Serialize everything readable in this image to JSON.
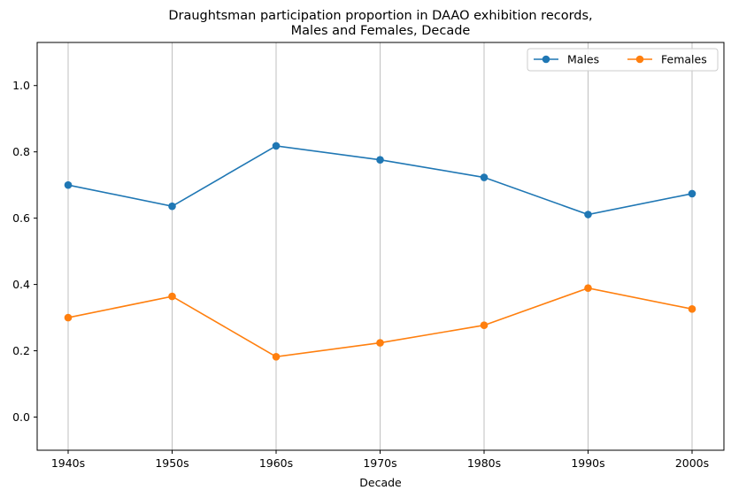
{
  "chart_data": {
    "type": "line",
    "title": "Draughtsman participation proportion in DAAO exhibition records,\nMales and Females, Decade",
    "title_lines": [
      "Draughtsman participation proportion in DAAO exhibition records,",
      "Males and Females, Decade"
    ],
    "xlabel": "Decade",
    "ylabel": "",
    "categories": [
      "1940s",
      "1950s",
      "1960s",
      "1970s",
      "1980s",
      "1990s",
      "2000s"
    ],
    "ylim": [
      -0.1,
      1.13
    ],
    "yticks": [
      0.0,
      0.2,
      0.4,
      0.6,
      0.8,
      1.0
    ],
    "ytick_labels": [
      "0.0",
      "0.2",
      "0.4",
      "0.6",
      "0.8",
      "1.0"
    ],
    "grid": "vertical",
    "legend_position": "top-right",
    "series": [
      {
        "name": "Males",
        "color": "#1f77b4",
        "values": [
          0.7,
          0.636,
          0.818,
          0.776,
          0.723,
          0.611,
          0.674
        ]
      },
      {
        "name": "Females",
        "color": "#ff7f0e",
        "values": [
          0.3,
          0.364,
          0.182,
          0.224,
          0.277,
          0.389,
          0.326
        ]
      }
    ]
  }
}
